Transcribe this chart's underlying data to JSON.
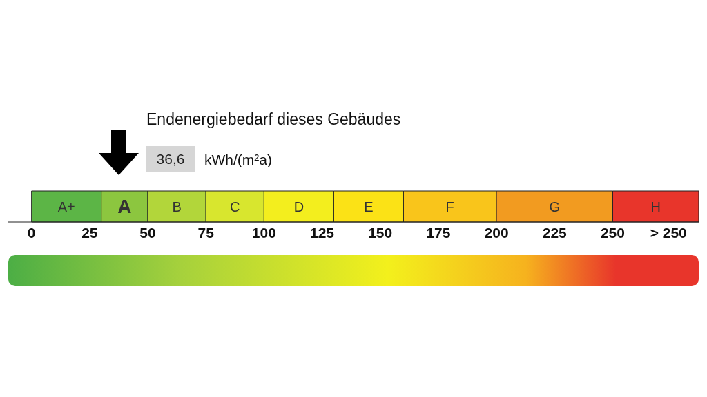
{
  "chart_data": {
    "type": "bar",
    "orientation": "horizontal",
    "stacked": true,
    "title": "Endenergiebedarf dieses Gebäudes",
    "annotations": [
      "36,6",
      "kWh/(m²a)"
    ],
    "categories": [
      null
    ],
    "xlim": [
      -10,
      287
    ],
    "xticks": [
      0,
      25,
      50,
      75,
      100,
      125,
      150,
      175,
      200,
      225,
      250,
      {
        "value": 274,
        "label": "> 250"
      }
    ],
    "legend": false,
    "series": [
      {
        "name": "A+",
        "color": "#5cb546",
        "values": [
          30
        ]
      },
      {
        "name": "A",
        "color": "#8cc63f",
        "values": [
          20
        ]
      },
      {
        "name": "B",
        "color": "#b2d63a",
        "values": [
          25
        ]
      },
      {
        "name": "C",
        "color": "#d8e62e",
        "values": [
          25
        ]
      },
      {
        "name": "D",
        "color": "#f3ee1e",
        "values": [
          30
        ]
      },
      {
        "name": "E",
        "color": "#fbe216",
        "values": [
          30
        ]
      },
      {
        "name": "F",
        "color": "#f9c51b",
        "values": [
          40
        ]
      },
      {
        "name": "G",
        "color": "#f29b20",
        "values": [
          50
        ]
      },
      {
        "name": "H",
        "color": "#e8352b",
        "values": [
          37
        ]
      }
    ]
  }
}
